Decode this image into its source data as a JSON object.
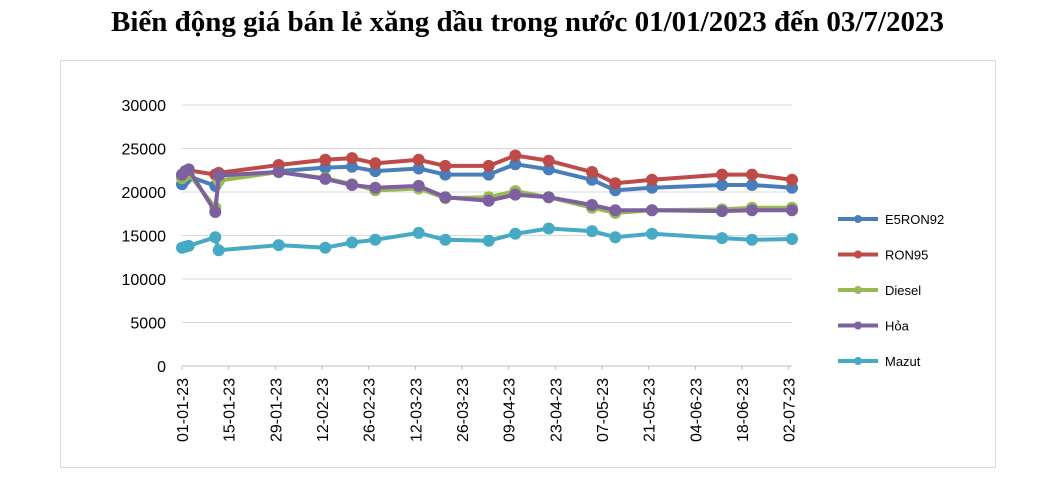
{
  "title": "Biến động giá bán lẻ xăng dầu trong nước 01/01/2023 đến 03/7/2023",
  "chart_data": {
    "type": "line",
    "x_type": "date",
    "xlim": [
      "2023-01-01",
      "2023-07-03"
    ],
    "x_tick_labels": [
      "01-01-23",
      "15-01-23",
      "29-01-23",
      "12-02-23",
      "26-02-23",
      "12-03-23",
      "26-03-23",
      "09-04-23",
      "23-04-23",
      "07-05-23",
      "21-05-23",
      "04-06-23",
      "18-06-23",
      "02-07-23"
    ],
    "x_tick_dates": [
      "2023-01-01",
      "2023-01-15",
      "2023-01-29",
      "2023-02-12",
      "2023-02-26",
      "2023-03-12",
      "2023-03-26",
      "2023-04-09",
      "2023-04-23",
      "2023-05-07",
      "2023-05-21",
      "2023-06-04",
      "2023-06-18",
      "2023-07-02"
    ],
    "ylim": [
      0,
      30000
    ],
    "y_ticks": [
      0,
      5000,
      10000,
      15000,
      20000,
      25000,
      30000
    ],
    "grid": true,
    "legend_position": "right",
    "x": [
      "2023-01-01",
      "2023-01-02",
      "2023-01-03",
      "2023-01-11",
      "2023-01-12",
      "2023-01-30",
      "2023-02-13",
      "2023-02-21",
      "2023-02-28",
      "2023-03-13",
      "2023-03-21",
      "2023-04-03",
      "2023-04-11",
      "2023-04-21",
      "2023-05-04",
      "2023-05-11",
      "2023-05-22",
      "2023-06-12",
      "2023-06-21",
      "2023-07-03"
    ],
    "series": [
      {
        "name": "E5RON92",
        "color": "#4a7ebb",
        "values": [
          20900,
          21400,
          21800,
          20700,
          21300,
          22400,
          22800,
          22900,
          22400,
          22700,
          22000,
          22000,
          23200,
          22600,
          21400,
          20200,
          20500,
          20800,
          20800,
          20500
        ]
      },
      {
        "name": "RON95",
        "color": "#be4b48",
        "values": [
          21900,
          22300,
          22500,
          22000,
          22200,
          23100,
          23700,
          23900,
          23300,
          23700,
          23000,
          23000,
          24200,
          23600,
          22300,
          21000,
          21400,
          22000,
          22000,
          21400
        ]
      },
      {
        "name": "Diesel",
        "color": "#98b954",
        "values": [
          21600,
          21900,
          22100,
          18200,
          21300,
          22300,
          21600,
          20900,
          20200,
          20400,
          19300,
          19400,
          20100,
          19400,
          18200,
          17600,
          17900,
          18000,
          18200,
          18200
        ]
      },
      {
        "name": "Hỏa",
        "color": "#7d60a0",
        "values": [
          22000,
          22400,
          22600,
          17700,
          21900,
          22300,
          21500,
          20800,
          20500,
          20700,
          19400,
          19000,
          19700,
          19400,
          18500,
          17900,
          17900,
          17800,
          17900,
          17900
        ]
      },
      {
        "name": "Mazut",
        "color": "#46aac5",
        "values": [
          13600,
          13700,
          13800,
          14800,
          13300,
          13900,
          13600,
          14200,
          14500,
          15300,
          14500,
          14400,
          15200,
          15800,
          15500,
          14800,
          15200,
          14700,
          14500,
          14600
        ]
      }
    ]
  }
}
